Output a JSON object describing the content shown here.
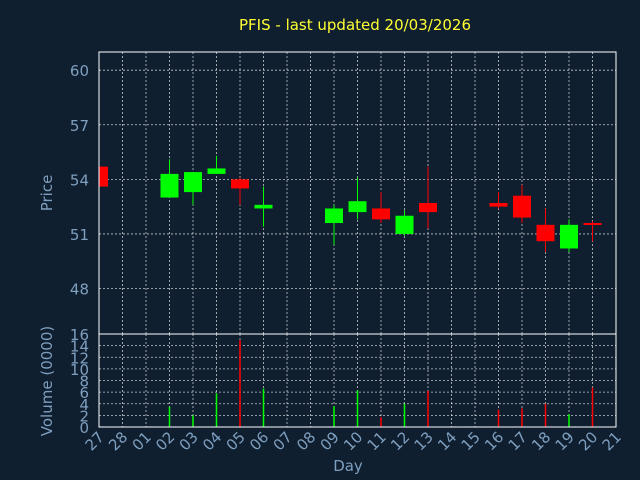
{
  "title": "PFIS - last updated 20/03/2026",
  "colors": {
    "up": "#00ff00",
    "down": "#ff0000",
    "background": "#0f1f30",
    "text": "#7f9fbf",
    "title": "#ffff33",
    "grid": "#ffffff"
  },
  "chart_data": [
    {
      "type": "candlestick",
      "ylabel": "Price",
      "ylim": [
        45.5,
        61
      ],
      "yticks": [
        48,
        51,
        54,
        57,
        60
      ],
      "grid": true,
      "candles": [
        {
          "day": "27",
          "open": 54.7,
          "high": 54.8,
          "low": 53.6,
          "close": 53.6
        },
        {
          "day": "02",
          "open": 53.0,
          "high": 55.1,
          "low": 53.0,
          "close": 54.3
        },
        {
          "day": "03",
          "open": 53.3,
          "high": 54.4,
          "low": 52.6,
          "close": 54.4
        },
        {
          "day": "04",
          "open": 54.3,
          "high": 55.3,
          "low": 54.3,
          "close": 54.6
        },
        {
          "day": "05",
          "open": 54.0,
          "high": 54.1,
          "low": 52.6,
          "close": 53.5
        },
        {
          "day": "06",
          "open": 52.4,
          "high": 53.6,
          "low": 51.4,
          "close": 52.6
        },
        {
          "day": "09",
          "open": 51.6,
          "high": 52.6,
          "low": 50.4,
          "close": 52.4
        },
        {
          "day": "10",
          "open": 52.2,
          "high": 54.1,
          "low": 51.8,
          "close": 52.8
        },
        {
          "day": "11",
          "open": 52.4,
          "high": 53.3,
          "low": 51.6,
          "close": 51.8
        },
        {
          "day": "12",
          "open": 51.0,
          "high": 52.3,
          "low": 50.9,
          "close": 52.0
        },
        {
          "day": "13",
          "open": 52.7,
          "high": 54.7,
          "low": 51.3,
          "close": 52.2
        },
        {
          "day": "16",
          "open": 52.7,
          "high": 53.3,
          "low": 52.4,
          "close": 52.5
        },
        {
          "day": "17",
          "open": 53.1,
          "high": 53.7,
          "low": 51.6,
          "close": 51.9
        },
        {
          "day": "18",
          "open": 51.5,
          "high": 52.4,
          "low": 50.0,
          "close": 50.6
        },
        {
          "day": "19",
          "open": 50.2,
          "high": 51.8,
          "low": 50.0,
          "close": 51.5
        },
        {
          "day": "20",
          "open": 51.6,
          "high": 51.7,
          "low": 50.6,
          "close": 51.5
        }
      ]
    },
    {
      "type": "bar",
      "ylabel": "Volume (0000)",
      "xlabel": "Day",
      "ylim": [
        0,
        16
      ],
      "yticks": [
        0,
        2,
        4,
        6,
        8,
        10,
        12,
        14,
        16
      ],
      "grid": true,
      "categories": [
        "27",
        "28",
        "01",
        "02",
        "03",
        "04",
        "05",
        "06",
        "07",
        "08",
        "09",
        "10",
        "11",
        "12",
        "13",
        "14",
        "15",
        "16",
        "17",
        "18",
        "19",
        "20",
        "21"
      ],
      "bars": [
        {
          "day": "02",
          "value": 3.5,
          "dir": "up"
        },
        {
          "day": "03",
          "value": 2.0,
          "dir": "up"
        },
        {
          "day": "04",
          "value": 5.8,
          "dir": "up"
        },
        {
          "day": "05",
          "value": 15.0,
          "dir": "down"
        },
        {
          "day": "06",
          "value": 6.6,
          "dir": "up"
        },
        {
          "day": "09",
          "value": 3.6,
          "dir": "up"
        },
        {
          "day": "10",
          "value": 6.3,
          "dir": "up"
        },
        {
          "day": "11",
          "value": 1.7,
          "dir": "down"
        },
        {
          "day": "12",
          "value": 4.0,
          "dir": "up"
        },
        {
          "day": "13",
          "value": 6.2,
          "dir": "down"
        },
        {
          "day": "16",
          "value": 3.0,
          "dir": "down"
        },
        {
          "day": "17",
          "value": 3.2,
          "dir": "down"
        },
        {
          "day": "18",
          "value": 4.0,
          "dir": "down"
        },
        {
          "day": "19",
          "value": 2.2,
          "dir": "up"
        },
        {
          "day": "20",
          "value": 6.8,
          "dir": "down"
        }
      ]
    }
  ]
}
